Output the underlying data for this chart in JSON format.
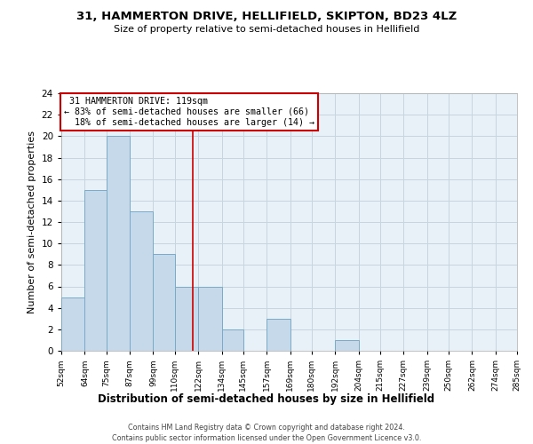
{
  "title": "31, HAMMERTON DRIVE, HELLIFIELD, SKIPTON, BD23 4LZ",
  "subtitle": "Size of property relative to semi-detached houses in Hellifield",
  "xlabel": "Distribution of semi-detached houses by size in Hellifield",
  "ylabel": "Number of semi-detached properties",
  "bin_edges": [
    52,
    64,
    75,
    87,
    99,
    110,
    122,
    134,
    145,
    157,
    169,
    180,
    192,
    204,
    215,
    227,
    239,
    250,
    262,
    274,
    285
  ],
  "bin_counts": [
    5,
    15,
    20,
    13,
    9,
    6,
    6,
    2,
    0,
    3,
    0,
    0,
    1,
    0,
    0,
    0,
    0,
    0,
    0,
    0
  ],
  "bar_color": "#c6d9ea",
  "bar_edge_color": "#7aaac8",
  "property_size": 119,
  "property_label": "31 HAMMERTON DRIVE: 119sqm",
  "smaller_pct": 83,
  "smaller_count": 66,
  "larger_pct": 18,
  "larger_count": 14,
  "vline_color": "#cc0000",
  "annotation_box_edge": "#cc0000",
  "ylim": [
    0,
    24
  ],
  "yticks": [
    0,
    2,
    4,
    6,
    8,
    10,
    12,
    14,
    16,
    18,
    20,
    22,
    24
  ],
  "tick_labels": [
    "52sqm",
    "64sqm",
    "75sqm",
    "87sqm",
    "99sqm",
    "110sqm",
    "122sqm",
    "134sqm",
    "145sqm",
    "157sqm",
    "169sqm",
    "180sqm",
    "192sqm",
    "204sqm",
    "215sqm",
    "227sqm",
    "239sqm",
    "250sqm",
    "262sqm",
    "274sqm",
    "285sqm"
  ],
  "footer_line1": "Contains HM Land Registry data © Crown copyright and database right 2024.",
  "footer_line2": "Contains public sector information licensed under the Open Government Licence v3.0.",
  "grid_color": "#c8d4de",
  "background_color": "#e8f0f8"
}
